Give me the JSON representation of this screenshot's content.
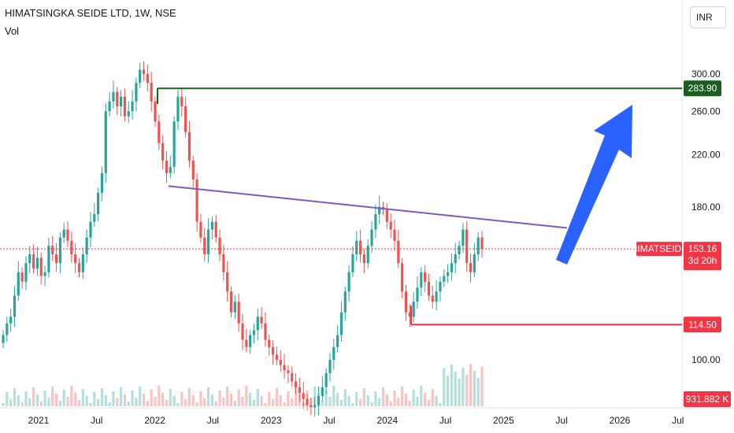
{
  "header": {
    "title": "HIMATSINGKA SEIDE LTD, 1W, NSE",
    "volume_label": "Vol",
    "currency": "INR"
  },
  "colors": {
    "up": "#26a69a",
    "down": "#ef5350",
    "resistance": "#1b5e20",
    "support": "#f23645",
    "trendline": "#7e57c2",
    "arrow": "#2962ff",
    "symbol_label": "#f23645"
  },
  "chart_data": {
    "type": "candlestick",
    "title": "HIMATSINGKA SEIDE LTD, 1W, NSE",
    "y_axis": {
      "ticks": [
        "300.00",
        "260.00",
        "220.00",
        "180.00",
        "100.00"
      ],
      "scale": "log",
      "range": [
        82,
        320
      ]
    },
    "x_axis": {
      "ticks": [
        "2021",
        "Jul",
        "2022",
        "Jul",
        "2023",
        "Jul",
        "2024",
        "Jul",
        "2025",
        "Jul",
        "2026",
        "Jul"
      ]
    },
    "closes": [
      110,
      115,
      118,
      128,
      140,
      135,
      145,
      150,
      142,
      148,
      138,
      140,
      155,
      150,
      145,
      160,
      165,
      158,
      150,
      145,
      140,
      150,
      160,
      170,
      175,
      190,
      205,
      260,
      270,
      280,
      265,
      275,
      255,
      260,
      270,
      290,
      305,
      300,
      290,
      270,
      250,
      230,
      215,
      205,
      210,
      250,
      275,
      265,
      240,
      215,
      200,
      170,
      160,
      150,
      165,
      170,
      160,
      150,
      140,
      130,
      120,
      125,
      115,
      108,
      105,
      110,
      112,
      118,
      115,
      108,
      105,
      102,
      100,
      98,
      96,
      95,
      92,
      90,
      88,
      86,
      84,
      83,
      84,
      87,
      90,
      95,
      100,
      105,
      110,
      120,
      130,
      140,
      150,
      158,
      150,
      145,
      155,
      165,
      175,
      180,
      178,
      170,
      165,
      158,
      145,
      130,
      120,
      118,
      125,
      132,
      140,
      135,
      128,
      125,
      130,
      135,
      138,
      140,
      145,
      150,
      155,
      165,
      145,
      140,
      150,
      160,
      153.16
    ],
    "volume_unit": "K",
    "last_volume": "931.882 K",
    "levels": [
      {
        "name": "resistance",
        "value": 283.9,
        "label": "283.90"
      },
      {
        "name": "last_price",
        "value": 153.16,
        "label": "153.16",
        "symbol": "HIMATSEIDE",
        "countdown": "3d 20h"
      },
      {
        "name": "support",
        "value": 114.5,
        "label": "114.50"
      }
    ],
    "trendline": {
      "from": {
        "date": "2022-02",
        "value": 195
      },
      "to": {
        "date": "2025-07",
        "value": 166
      }
    },
    "grid": false,
    "legend": "none"
  }
}
